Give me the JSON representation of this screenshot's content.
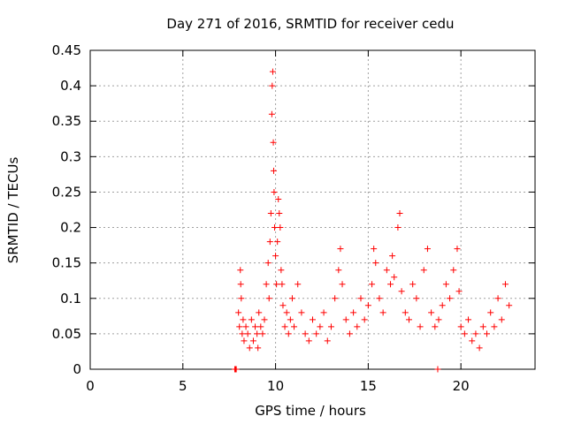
{
  "chart_data": {
    "type": "scatter",
    "title": "Day 271 of 2016, SRMTID for receiver cedu",
    "xlabel": "GPS time / hours",
    "ylabel": "SRMTID / TECUs",
    "xlim": [
      0,
      24
    ],
    "ylim": [
      0,
      0.45
    ],
    "xticks": [
      0,
      5,
      10,
      15,
      20
    ],
    "yticks": [
      0,
      0.05,
      0.1,
      0.15,
      0.2,
      0.25,
      0.3,
      0.35,
      0.4,
      0.45
    ],
    "xtick_labels": [
      "0",
      "5",
      "10",
      "15",
      "20"
    ],
    "ytick_labels": [
      "0",
      "0.05",
      "0.1",
      "0.15",
      "0.2",
      "0.25",
      "0.3",
      "0.35",
      "0.4",
      "0.45"
    ],
    "grid": true,
    "marker": "+",
    "color": "#ff0000",
    "series": [
      {
        "name": "SRMTID",
        "x": [
          7.8,
          7.82,
          7.84,
          7.86,
          7.88,
          8.0,
          8.05,
          8.1,
          8.12,
          8.15,
          8.2,
          8.25,
          8.3,
          8.4,
          8.5,
          8.6,
          8.7,
          8.8,
          8.9,
          9.0,
          9.05,
          9.1,
          9.2,
          9.3,
          9.4,
          9.5,
          9.6,
          9.65,
          9.7,
          9.75,
          9.8,
          9.82,
          9.85,
          9.88,
          9.9,
          9.92,
          9.95,
          10.0,
          10.05,
          10.1,
          10.15,
          10.2,
          10.25,
          10.3,
          10.35,
          10.4,
          10.5,
          10.6,
          10.7,
          10.8,
          10.9,
          11.0,
          11.2,
          11.4,
          11.6,
          11.8,
          12.0,
          12.2,
          12.4,
          12.6,
          12.8,
          13.0,
          13.2,
          13.4,
          13.5,
          13.6,
          13.8,
          14.0,
          14.2,
          14.4,
          14.6,
          14.8,
          15.0,
          15.2,
          15.3,
          15.4,
          15.6,
          15.8,
          16.0,
          16.2,
          16.3,
          16.4,
          16.6,
          16.7,
          16.8,
          17.0,
          17.2,
          17.4,
          17.6,
          17.8,
          18.0,
          18.2,
          18.4,
          18.6,
          18.75,
          18.8,
          19.0,
          19.2,
          19.4,
          19.6,
          19.8,
          19.9,
          20.0,
          20.2,
          20.4,
          20.6,
          20.8,
          21.0,
          21.2,
          21.4,
          21.6,
          21.8,
          22.0,
          22.2,
          22.4,
          22.6
        ],
        "y": [
          0.0,
          0.0,
          0.0,
          0.0,
          0.0,
          0.08,
          0.06,
          0.14,
          0.12,
          0.1,
          0.05,
          0.07,
          0.04,
          0.06,
          0.05,
          0.03,
          0.07,
          0.04,
          0.06,
          0.05,
          0.03,
          0.08,
          0.06,
          0.05,
          0.07,
          0.12,
          0.15,
          0.1,
          0.18,
          0.22,
          0.36,
          0.4,
          0.42,
          0.32,
          0.28,
          0.25,
          0.2,
          0.16,
          0.12,
          0.18,
          0.24,
          0.22,
          0.2,
          0.14,
          0.12,
          0.09,
          0.06,
          0.08,
          0.05,
          0.07,
          0.1,
          0.06,
          0.12,
          0.08,
          0.05,
          0.04,
          0.07,
          0.05,
          0.06,
          0.08,
          0.04,
          0.06,
          0.1,
          0.14,
          0.17,
          0.12,
          0.07,
          0.05,
          0.08,
          0.06,
          0.1,
          0.07,
          0.09,
          0.12,
          0.17,
          0.15,
          0.1,
          0.08,
          0.14,
          0.12,
          0.16,
          0.13,
          0.2,
          0.22,
          0.11,
          0.08,
          0.07,
          0.12,
          0.1,
          0.06,
          0.14,
          0.17,
          0.08,
          0.06,
          0.0,
          0.07,
          0.09,
          0.12,
          0.1,
          0.14,
          0.17,
          0.11,
          0.06,
          0.05,
          0.07,
          0.04,
          0.05,
          0.03,
          0.06,
          0.05,
          0.08,
          0.06,
          0.1,
          0.07,
          0.12,
          0.09
        ]
      }
    ]
  }
}
